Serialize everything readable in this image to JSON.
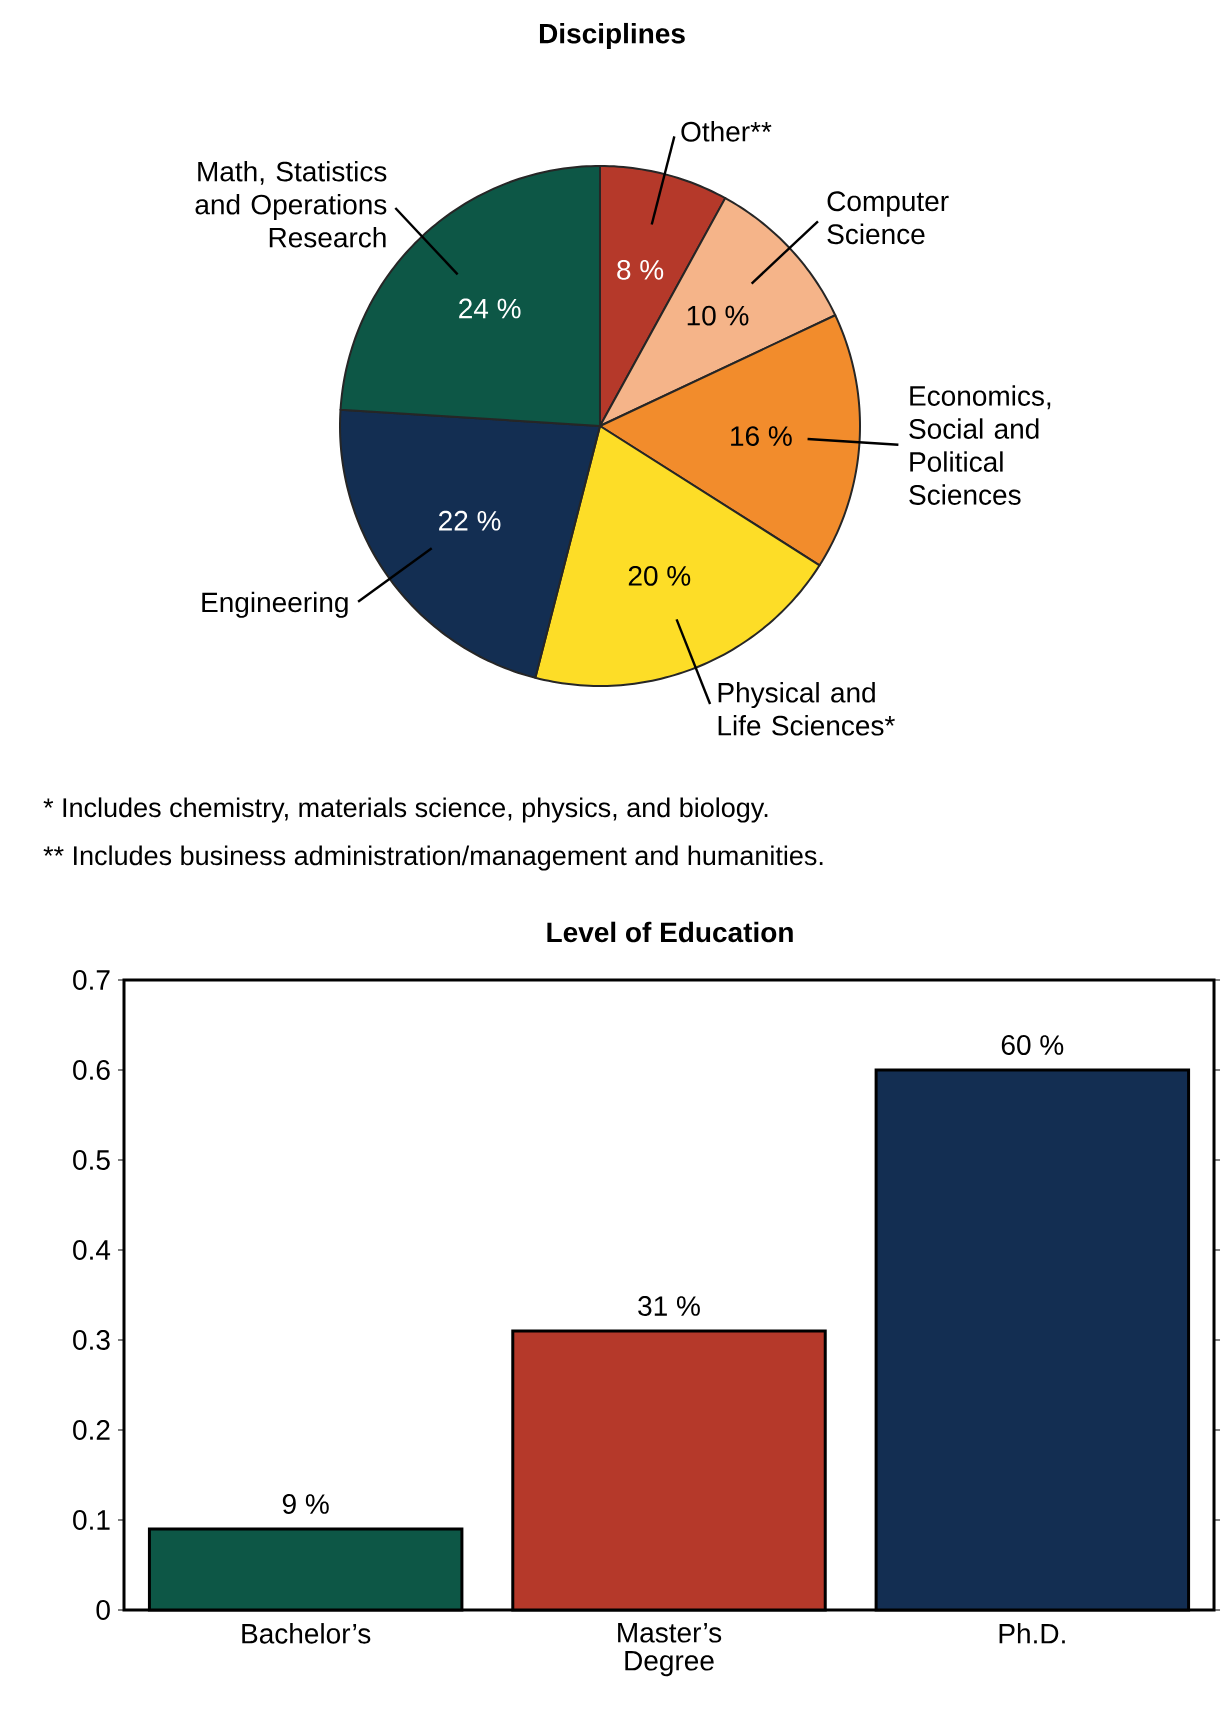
{
  "chart_data": [
    {
      "type": "pie",
      "title": "Disciplines",
      "categories": [
        "Other**",
        "Computer Science",
        "Economics, Social and Political Sciences",
        "Physical and Life Sciences*",
        "Engineering",
        "Math, Statistics and Operations Research"
      ],
      "values": [
        8,
        10,
        16,
        20,
        22,
        24
      ],
      "value_labels": [
        "8 %",
        "10 %",
        "16 %",
        "20 %",
        "22 %",
        "24 %"
      ],
      "colors": [
        "#b5392a",
        "#f5b489",
        "#f28c2c",
        "#fddd27",
        "#132e52",
        "#0d5746"
      ],
      "annotations": [
        "* Includes chemistry, materials science, physics, and biology.",
        "** Includes business administration/management and humanities."
      ]
    },
    {
      "type": "bar",
      "title": "Level of Education",
      "categories": [
        "Bachelor’s",
        "Master’s Degree",
        "Ph.D."
      ],
      "values": [
        0.09,
        0.31,
        0.6
      ],
      "value_labels": [
        "9 %",
        "31 %",
        "60 %"
      ],
      "colors": [
        "#0d5746",
        "#b5392a",
        "#132e52"
      ],
      "ylim": [
        0,
        0.7
      ],
      "yticks": [
        0,
        0.1,
        0.2,
        0.3,
        0.4,
        0.5,
        0.6,
        0.7
      ]
    }
  ]
}
